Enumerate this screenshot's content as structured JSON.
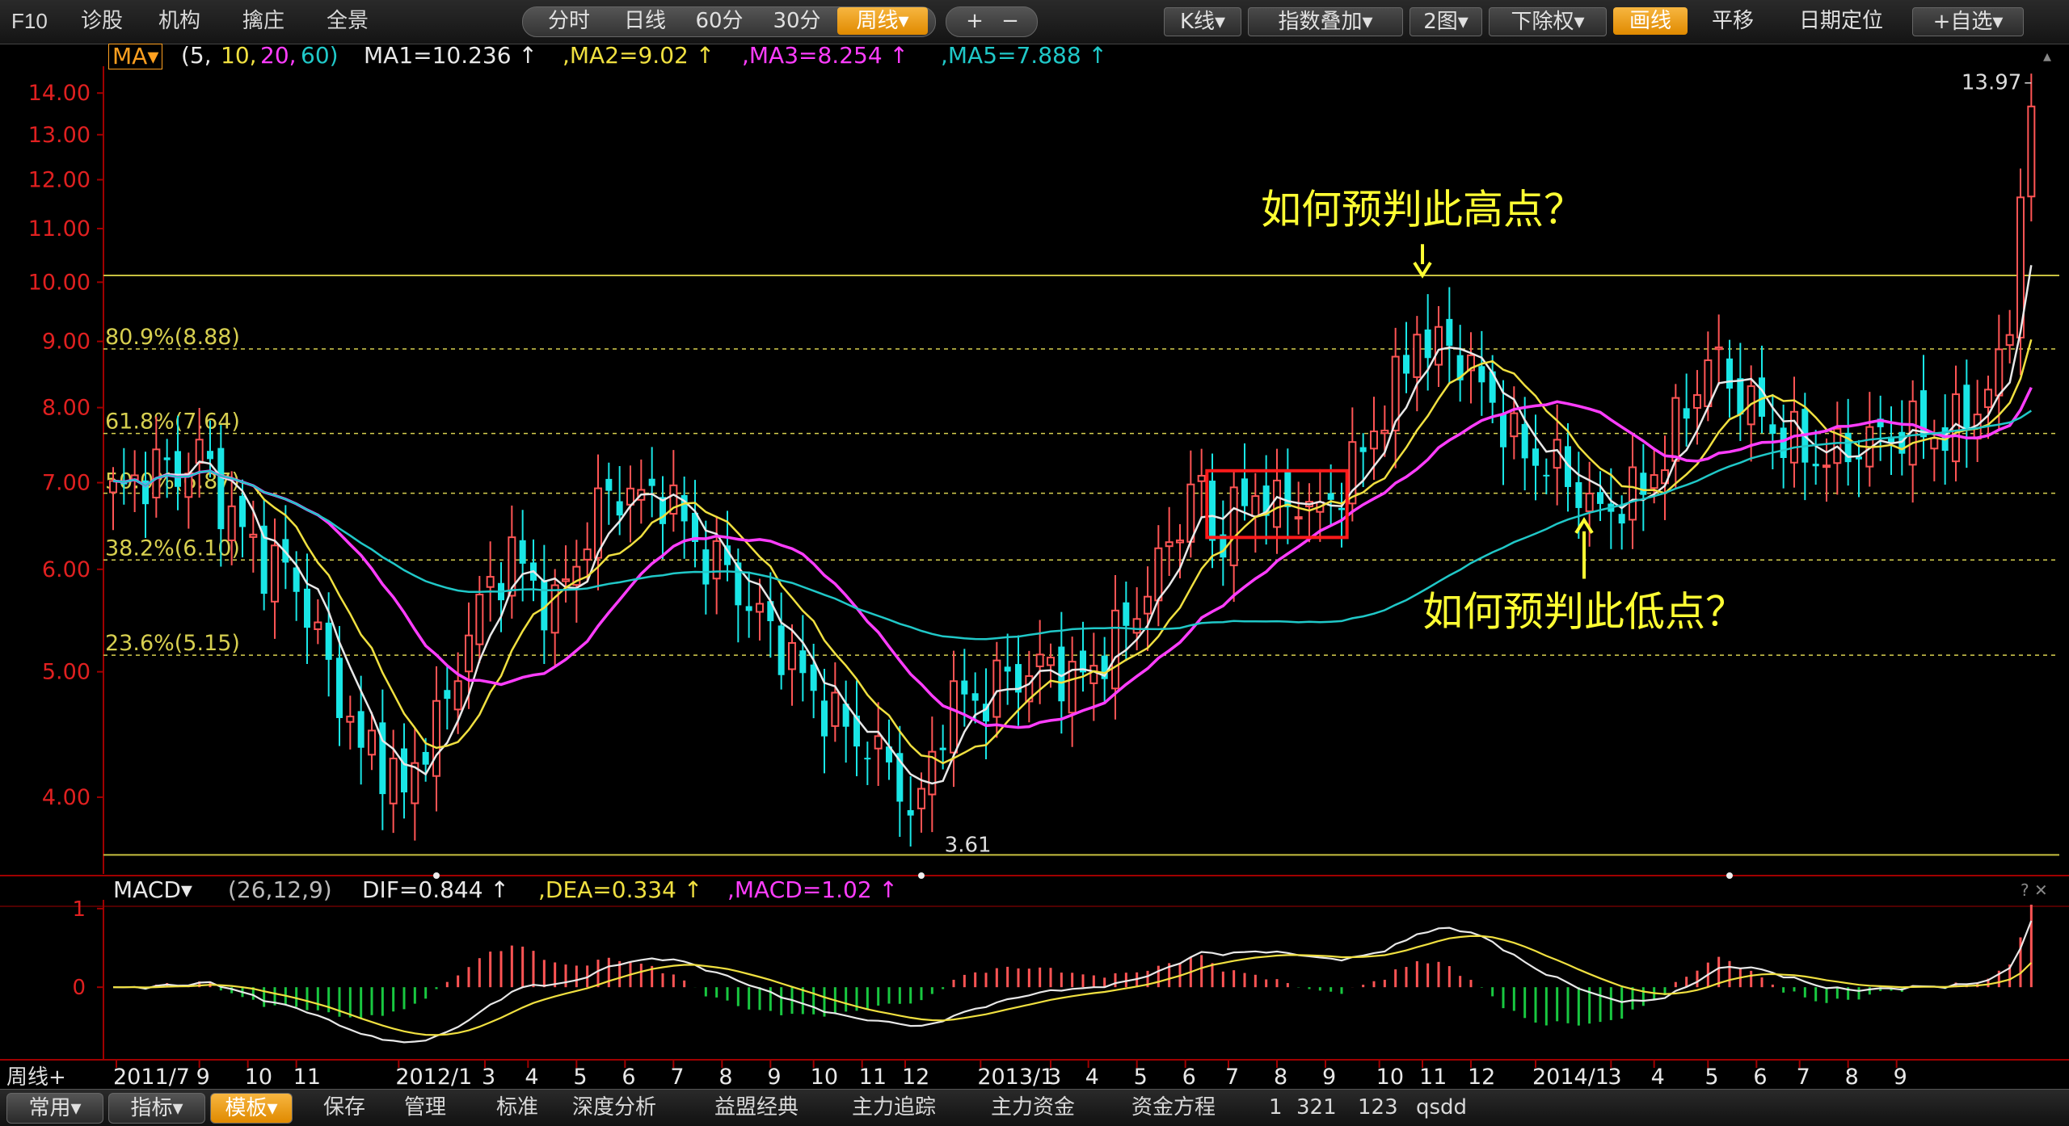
{
  "toolbar": {
    "left_items": [
      "F10",
      "诊股",
      "机构",
      "擒庄",
      "全景"
    ],
    "period_tabs": [
      "分时",
      "日线",
      "60分",
      "30分",
      "周线▾"
    ],
    "active_period": "周线▾",
    "zoom": [
      "+",
      "−"
    ],
    "right_items": [
      "K线▾",
      "指数叠加▾",
      "2图▾",
      "下除权▾",
      "画线",
      "平移",
      "日期定位",
      "+自选▾"
    ],
    "active_right": "画线"
  },
  "ma_legend": {
    "name": "MA▾",
    "params_open": "(5,",
    "params_10": "10,",
    "params_20": "20,",
    "params_60": "60)",
    "ma1": "MA1=10.236 ↑",
    "ma2": ",MA2=9.02 ↑",
    "ma3": ",MA3=8.254 ↑",
    "ma5": ",MA5=7.888 ↑"
  },
  "macd_legend": {
    "name": "MACD▾",
    "params": "(26,12,9)",
    "dif": "DIF=0.844 ↑",
    "dea": ",DEA=0.334 ↑",
    "macd": ",MACD=1.02 ↑"
  },
  "colors": {
    "up": "#ff5454",
    "down": "#19e6e6",
    "ma5": "#e8e8e8",
    "ma10": "#f0e040",
    "ma20": "#ff3dff",
    "ma60": "#20c8c8",
    "axis": "#a00000",
    "fib": "#d8d050",
    "annotation": "#ffff33",
    "highlight_box": "#ff1a1a"
  },
  "chart_data": [
    {
      "type": "candlestick",
      "title": "",
      "period": "weekly",
      "y_ticks": [
        "14.00",
        "13.00",
        "12.00",
        "11.00",
        "10.00",
        "9.00",
        "8.00",
        "7.00",
        "6.00",
        "5.00",
        "4.00"
      ],
      "y_tick_values": [
        14,
        13,
        12,
        11,
        10,
        9,
        8,
        7,
        6,
        5,
        4
      ],
      "y_scale": "log",
      "ylim": [
        3.55,
        14.6
      ],
      "x_ticks": [
        {
          "label": "2011/7",
          "t": 0.3
        },
        {
          "label": "9",
          "t": 8
        },
        {
          "label": "10",
          "t": 12.5
        },
        {
          "label": "11",
          "t": 17
        },
        {
          "label": "2012/1",
          "t": 26.5
        },
        {
          "label": "3",
          "t": 34.5
        },
        {
          "label": "4",
          "t": 38.5
        },
        {
          "label": "5",
          "t": 43
        },
        {
          "label": "6",
          "t": 47.5
        },
        {
          "label": "7",
          "t": 52
        },
        {
          "label": "8",
          "t": 56.5
        },
        {
          "label": "9",
          "t": 61
        },
        {
          "label": "10",
          "t": 65
        },
        {
          "label": "11",
          "t": 69.5
        },
        {
          "label": "12",
          "t": 73.5
        },
        {
          "label": "2013/1",
          "t": 80.5
        },
        {
          "label": "3",
          "t": 87
        },
        {
          "label": "4",
          "t": 90.5
        },
        {
          "label": "5",
          "t": 95
        },
        {
          "label": "6",
          "t": 99.5
        },
        {
          "label": "7",
          "t": 103.5
        },
        {
          "label": "8",
          "t": 108
        },
        {
          "label": "9",
          "t": 112.5
        },
        {
          "label": "10",
          "t": 117.5
        },
        {
          "label": "11",
          "t": 121.5
        },
        {
          "label": "12",
          "t": 126
        },
        {
          "label": "2014/1",
          "t": 132
        },
        {
          "label": "3",
          "t": 139
        },
        {
          "label": "4",
          "t": 143
        },
        {
          "label": "5",
          "t": 148
        },
        {
          "label": "6",
          "t": 152.5
        },
        {
          "label": "7",
          "t": 156.5
        },
        {
          "label": "8",
          "t": 161
        },
        {
          "label": "9",
          "t": 165.5
        }
      ],
      "x_count": 168,
      "close_anchors": [
        [
          0,
          6.85
        ],
        [
          2,
          7.0
        ],
        [
          4,
          7.2
        ],
        [
          6,
          7.1
        ],
        [
          8,
          7.4
        ],
        [
          10,
          6.8
        ],
        [
          12,
          6.4
        ],
        [
          14,
          6.1
        ],
        [
          16,
          6.0
        ],
        [
          18,
          5.6
        ],
        [
          20,
          5.0
        ],
        [
          22,
          4.6
        ],
        [
          23,
          4.3
        ],
        [
          24,
          4.4
        ],
        [
          26,
          4.15
        ],
        [
          27,
          4.0
        ],
        [
          29,
          4.45
        ],
        [
          31,
          4.7
        ],
        [
          33,
          5.4
        ],
        [
          35,
          5.8
        ],
        [
          37,
          6.2
        ],
        [
          39,
          5.8
        ],
        [
          41,
          5.6
        ],
        [
          43,
          6.1
        ],
        [
          45,
          6.7
        ],
        [
          47,
          6.9
        ],
        [
          49,
          6.8
        ],
        [
          51,
          6.9
        ],
        [
          53,
          6.5
        ],
        [
          55,
          6.1
        ],
        [
          57,
          6.0
        ],
        [
          59,
          5.6
        ],
        [
          61,
          5.4
        ],
        [
          63,
          5.1
        ],
        [
          65,
          4.8
        ],
        [
          67,
          4.6
        ],
        [
          69,
          4.45
        ],
        [
          71,
          4.3
        ],
        [
          73,
          4.15
        ],
        [
          74,
          3.8
        ],
        [
          75,
          4.0
        ],
        [
          77,
          4.6
        ],
        [
          79,
          4.8
        ],
        [
          81,
          4.75
        ],
        [
          83,
          5.0
        ],
        [
          85,
          4.95
        ],
        [
          87,
          5.1
        ],
        [
          89,
          4.9
        ],
        [
          91,
          5.05
        ],
        [
          93,
          5.3
        ],
        [
          95,
          5.6
        ],
        [
          97,
          6.0
        ],
        [
          99,
          6.6
        ],
        [
          101,
          7.0
        ],
        [
          102,
          6.3
        ],
        [
          104,
          6.6
        ],
        [
          106,
          6.9
        ],
        [
          108,
          6.7
        ],
        [
          110,
          6.8
        ],
        [
          112,
          6.6
        ],
        [
          114,
          7.0
        ],
        [
          116,
          7.4
        ],
        [
          118,
          8.0
        ],
        [
          120,
          8.6
        ],
        [
          121,
          9.3
        ],
        [
          122,
          8.8
        ],
        [
          124,
          9.0
        ],
        [
          126,
          8.5
        ],
        [
          128,
          8.1
        ],
        [
          130,
          7.5
        ],
        [
          132,
          7.3
        ],
        [
          134,
          7.2
        ],
        [
          136,
          6.9
        ],
        [
          138,
          6.6
        ],
        [
          140,
          6.8
        ],
        [
          142,
          6.9
        ],
        [
          144,
          7.4
        ],
        [
          146,
          8.0
        ],
        [
          148,
          8.7
        ],
        [
          149,
          8.6
        ],
        [
          150,
          8.4
        ],
        [
          152,
          8.0
        ],
        [
          154,
          7.7
        ],
        [
          156,
          7.5
        ],
        [
          158,
          7.3
        ],
        [
          160,
          7.35
        ],
        [
          162,
          7.5
        ],
        [
          164,
          7.6
        ],
        [
          166,
          7.65
        ],
        [
          168,
          7.7
        ],
        [
          170,
          7.6
        ],
        [
          172,
          7.9
        ],
        [
          174,
          8.2
        ],
        [
          175,
          8.6
        ],
        [
          176,
          9.3
        ],
        [
          177,
          12.0
        ],
        [
          178,
          13.1
        ]
      ],
      "max_label": "13.97",
      "min_label": "3.61",
      "fibonacci": [
        {
          "label": "80.9%(8.88)",
          "value": 8.88
        },
        {
          "label": "61.8%(7.64)",
          "value": 7.64
        },
        {
          "label": "50.0%(6.87)",
          "value": 6.87
        },
        {
          "label": "38.2%(6.10)",
          "value": 6.1
        },
        {
          "label": "23.6%(5.15)",
          "value": 5.15
        }
      ],
      "horizontal_lines": [
        10.12,
        3.61
      ],
      "annotations": [
        {
          "text": "如何预判此高点？",
          "t": 121.5,
          "arrow_from": 10.7,
          "arrow_to": 10.12
        },
        {
          "text": "如何预判此低点？",
          "t": 136.5,
          "arrow_from": 5.9,
          "arrow_to": 6.55
        }
      ],
      "highlight_box": {
        "t_start": 101.5,
        "t_end": 114.5,
        "y_top": 7.15,
        "y_bottom": 6.35
      }
    },
    {
      "type": "line",
      "title": "MACD",
      "y_ticks": [
        "1",
        "0"
      ],
      "y_tick_values": [
        1,
        0
      ],
      "ylim": [
        -0.8,
        1.05
      ]
    }
  ],
  "bottombar": {
    "tabs": [
      "常用▾",
      "指标▾",
      "模板▾"
    ],
    "active_tab": "模板▾",
    "period_label": "周线+",
    "items": [
      "保存",
      "管理",
      "标准",
      "深度分析",
      "益盟经典",
      "主力追踪",
      "主力资金",
      "资金方程",
      "1",
      "321",
      "123",
      "qsdd"
    ]
  }
}
